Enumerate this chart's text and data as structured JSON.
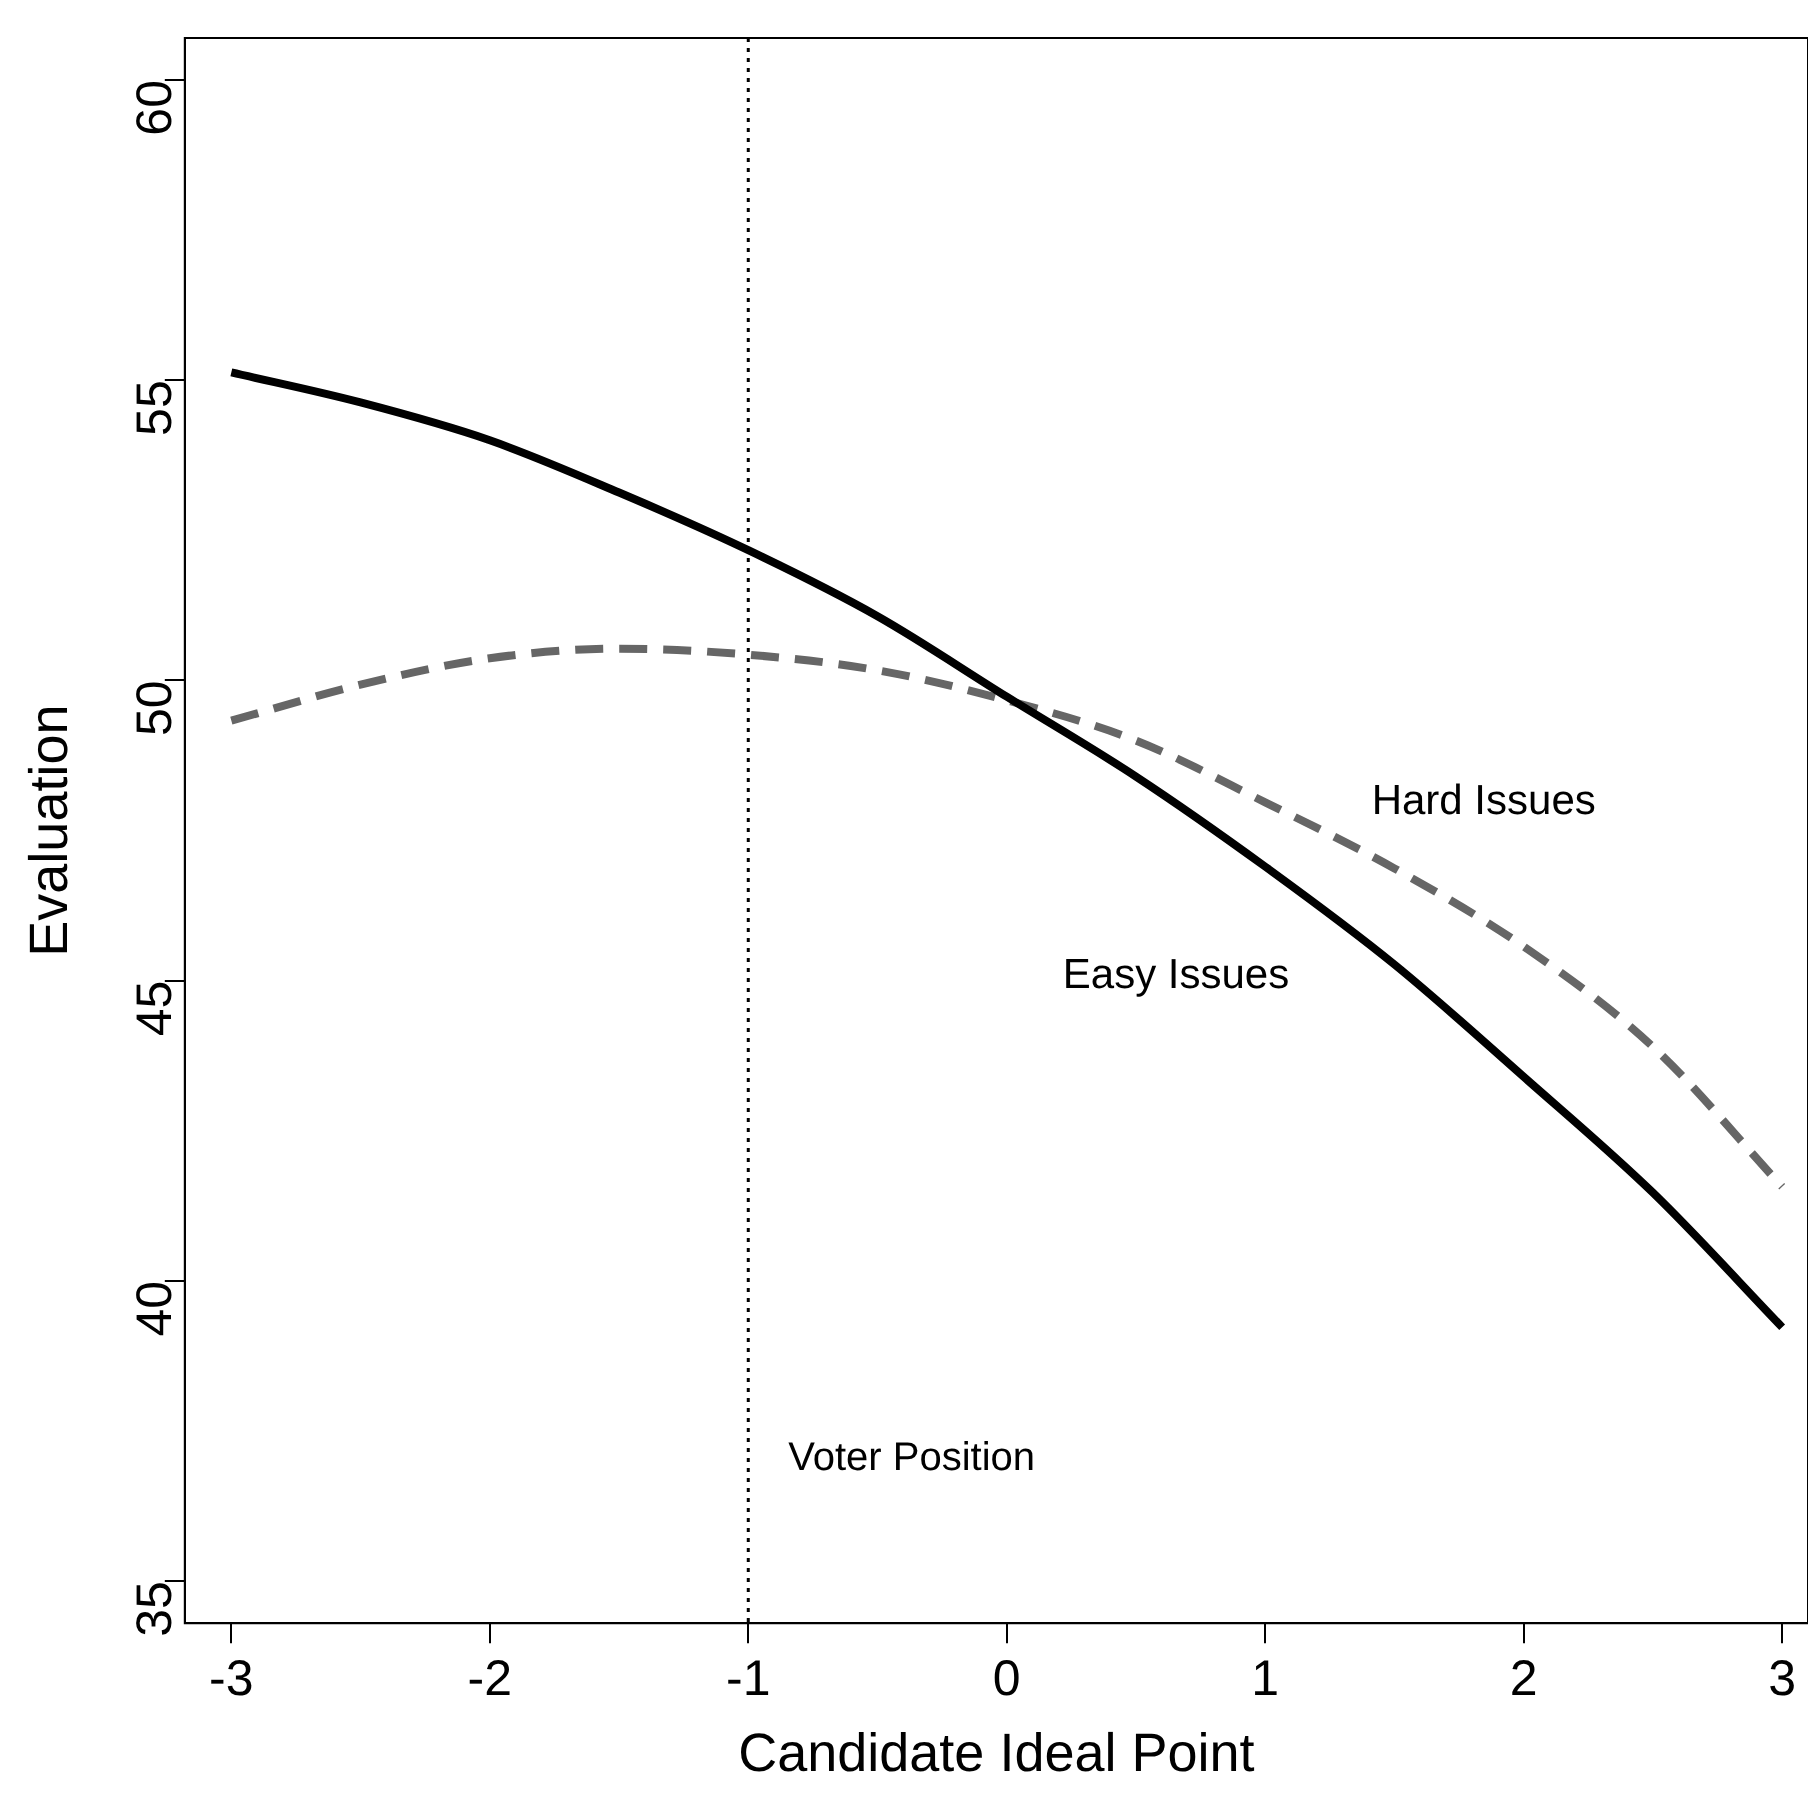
{
  "chart_data": {
    "type": "line",
    "xlabel": "Candidate Ideal Point",
    "ylabel": "Evaluation",
    "xlim": [
      -3.18,
      3.1
    ],
    "xticks": [
      -3,
      -2,
      -1,
      0,
      1,
      2,
      3
    ],
    "ylim": [
      34.3,
      60.7
    ],
    "yticks": [
      35,
      40,
      45,
      50,
      55,
      60
    ],
    "grid": false,
    "legend": false,
    "marker": "none",
    "series": [
      {
        "name": "Easy Issues",
        "color": "#000000",
        "line_style": "solid",
        "x": [
          -3,
          -2.5,
          -2,
          -1.5,
          -1,
          -0.5,
          0,
          0.5,
          1,
          1.5,
          2,
          2.5,
          3
        ],
        "values": [
          55.13,
          54.63,
          54.0,
          53.13,
          52.17,
          51.07,
          49.73,
          48.4,
          46.9,
          45.27,
          43.4,
          41.47,
          39.23
        ]
      },
      {
        "name": "Hard Issues",
        "color": "#666666",
        "line_style": "dashed",
        "x": [
          -3,
          -2.5,
          -2,
          -1.5,
          -1,
          -0.5,
          0,
          0.5,
          1,
          1.5,
          2,
          2.5,
          3
        ],
        "values": [
          49.33,
          49.93,
          50.37,
          50.53,
          50.43,
          50.17,
          49.67,
          49.0,
          47.97,
          46.87,
          45.57,
          43.9,
          41.57
        ]
      }
    ],
    "ref_lines": [
      {
        "axis": "x",
        "value": -1,
        "label": "Voter Position",
        "line_style": "dotted",
        "color": "#000000"
      }
    ]
  }
}
